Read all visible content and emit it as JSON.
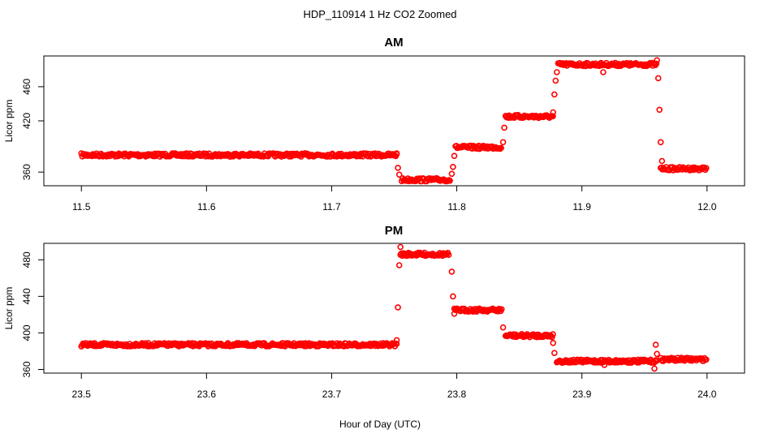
{
  "figure": {
    "title": "HDP_110914  1 Hz CO2 Zoomed",
    "xlabel": "Hour of Day (UTC)",
    "point_color": "#ff0000"
  },
  "chart_data": [
    {
      "type": "scatter",
      "title": "AM",
      "xlabel": "",
      "ylabel": "Licor ppm",
      "xlim": [
        11.47,
        12.03
      ],
      "ylim": [
        344,
        496
      ],
      "xticks": [
        11.5,
        11.6,
        11.7,
        11.8,
        11.9,
        12.0
      ],
      "xtick_labels": [
        "11.5",
        "11.6",
        "11.7",
        "11.8",
        "11.9",
        "12.0"
      ],
      "yticks": [
        360,
        420,
        460
      ],
      "ytick_labels": [
        "360",
        "420",
        "460"
      ],
      "grid": false,
      "segments": [
        {
          "x0": 11.5,
          "x1": 11.752,
          "y": 380
        },
        {
          "x0": 11.756,
          "x1": 11.795,
          "y": 351
        },
        {
          "x0": 11.799,
          "x1": 11.836,
          "y": 389
        },
        {
          "x0": 11.839,
          "x1": 11.877,
          "y": 425
        },
        {
          "x0": 11.881,
          "x1": 11.96,
          "y": 486
        },
        {
          "x0": 11.963,
          "x1": 12.0,
          "y": 364
        }
      ],
      "points": [
        {
          "x": 11.752,
          "y": 382
        },
        {
          "x": 11.753,
          "y": 365
        },
        {
          "x": 11.754,
          "y": 357
        },
        {
          "x": 11.796,
          "y": 358
        },
        {
          "x": 11.797,
          "y": 366
        },
        {
          "x": 11.798,
          "y": 379
        },
        {
          "x": 11.837,
          "y": 395
        },
        {
          "x": 11.838,
          "y": 412
        },
        {
          "x": 11.877,
          "y": 430
        },
        {
          "x": 11.878,
          "y": 451
        },
        {
          "x": 11.879,
          "y": 467
        },
        {
          "x": 11.88,
          "y": 477
        },
        {
          "x": 11.917,
          "y": 477
        },
        {
          "x": 11.96,
          "y": 491
        },
        {
          "x": 11.961,
          "y": 470
        },
        {
          "x": 11.962,
          "y": 433
        },
        {
          "x": 11.963,
          "y": 395
        },
        {
          "x": 11.964,
          "y": 373
        }
      ]
    },
    {
      "type": "scatter",
      "title": "PM",
      "xlabel": "Hour of Day (UTC)",
      "ylabel": "Licor ppm",
      "xlim": [
        23.47,
        24.03
      ],
      "ylim": [
        356,
        498
      ],
      "xticks": [
        23.5,
        23.6,
        23.7,
        23.8,
        23.9,
        24.0
      ],
      "xtick_labels": [
        "23.5",
        "23.6",
        "23.7",
        "23.8",
        "23.9",
        "24.0"
      ],
      "yticks": [
        360,
        400,
        440,
        480
      ],
      "ytick_labels": [
        "360",
        "400",
        "440",
        "480"
      ],
      "grid": false,
      "segments": [
        {
          "x0": 23.5,
          "x1": 23.752,
          "y": 387
        },
        {
          "x0": 23.755,
          "x1": 23.794,
          "y": 486
        },
        {
          "x0": 23.798,
          "x1": 23.836,
          "y": 425
        },
        {
          "x0": 23.839,
          "x1": 23.877,
          "y": 397
        },
        {
          "x0": 23.88,
          "x1": 23.96,
          "y": 369
        },
        {
          "x0": 23.963,
          "x1": 24.0,
          "y": 371
        }
      ],
      "points": [
        {
          "x": 23.752,
          "y": 392
        },
        {
          "x": 23.753,
          "y": 428
        },
        {
          "x": 23.754,
          "y": 474
        },
        {
          "x": 23.755,
          "y": 494
        },
        {
          "x": 23.796,
          "y": 467
        },
        {
          "x": 23.797,
          "y": 440
        },
        {
          "x": 23.798,
          "y": 421
        },
        {
          "x": 23.837,
          "y": 406
        },
        {
          "x": 23.877,
          "y": 389
        },
        {
          "x": 23.878,
          "y": 378
        },
        {
          "x": 23.918,
          "y": 365
        },
        {
          "x": 23.958,
          "y": 361
        },
        {
          "x": 23.959,
          "y": 387
        },
        {
          "x": 23.96,
          "y": 377
        }
      ]
    }
  ]
}
